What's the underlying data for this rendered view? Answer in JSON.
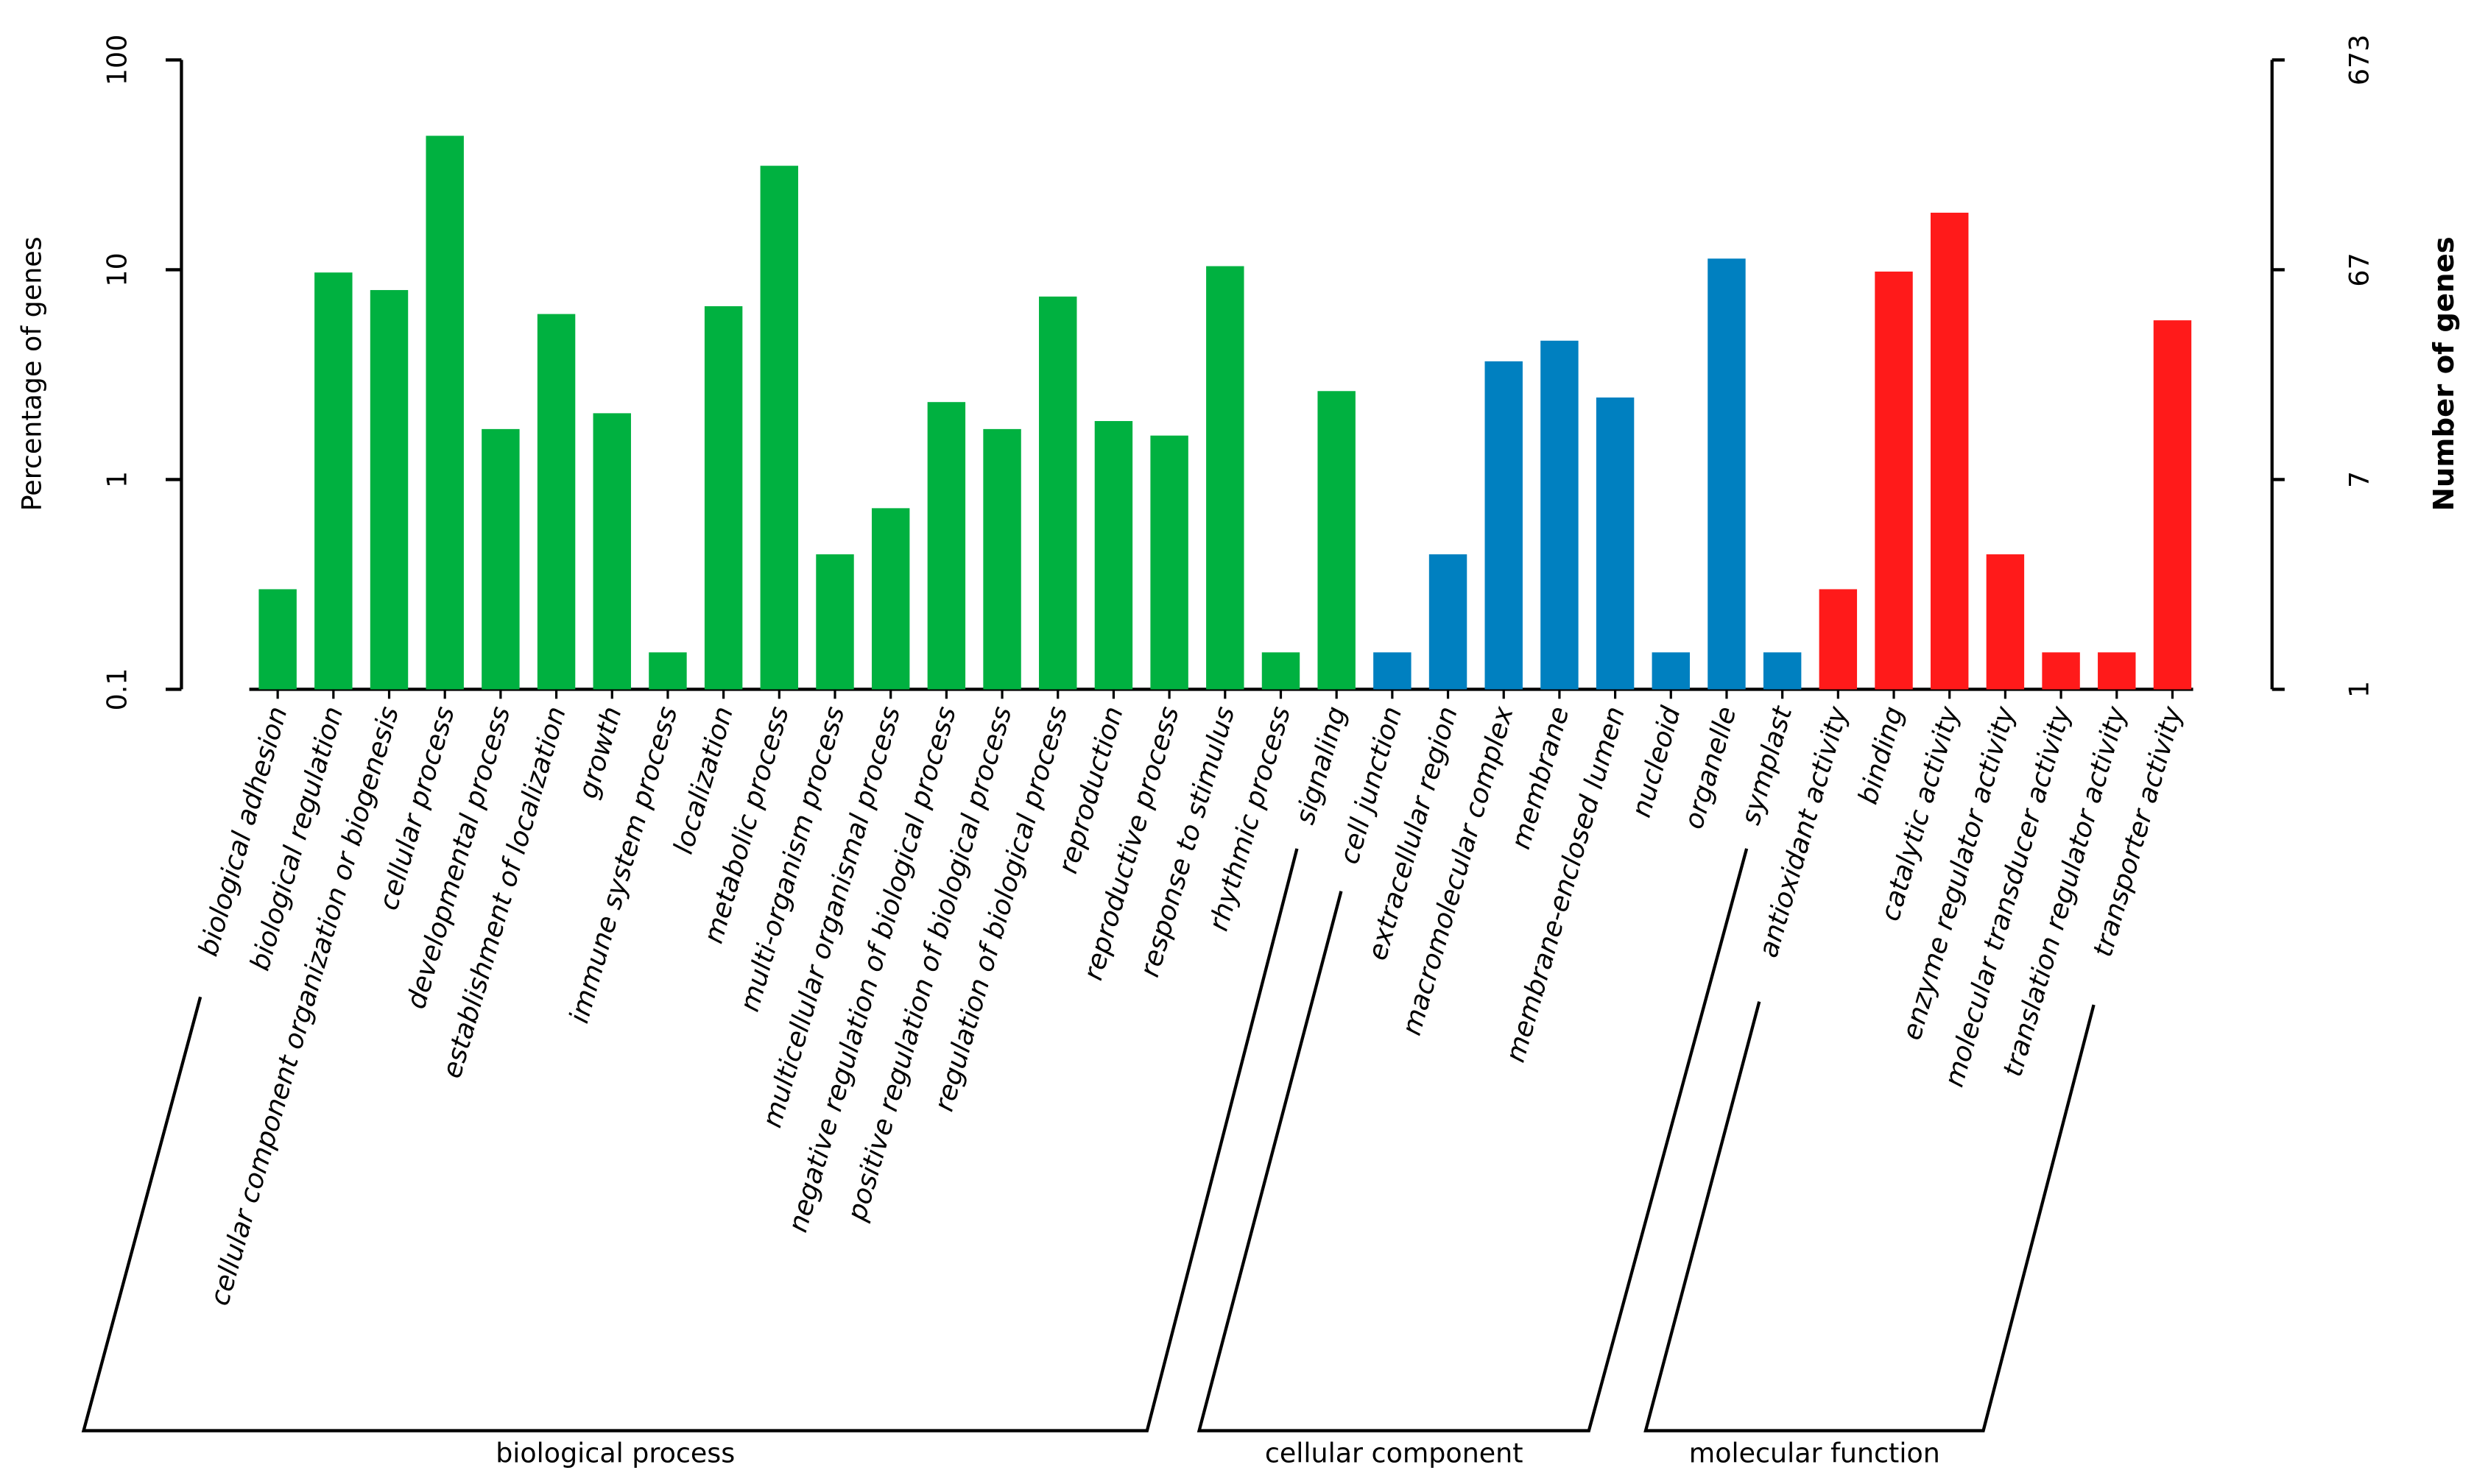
{
  "chart_data": {
    "type": "bar",
    "y_label": "Percentage of genes",
    "y2_label": "Number of genes",
    "log_scale": true,
    "ylim": [
      0.1,
      100
    ],
    "yticks": [
      0.1,
      1,
      10,
      100
    ],
    "y2lim": [
      0.673,
      673
    ],
    "y2ticks": [
      {
        "value": 0.673,
        "label": "1"
      },
      {
        "value": 6.73,
        "label": "7"
      },
      {
        "value": 67.3,
        "label": "67"
      },
      673
    ],
    "groups": [
      {
        "name": "biological process",
        "color": "#00b140",
        "categories": [
          "biological adhesion",
          "biological regulation",
          "cellular component organization or biogenesis",
          "cellular process",
          "developmental process",
          "establishment of localization",
          "growth",
          "immune system process",
          "localization",
          "metabolic process",
          "multi-organism process",
          "multicellular organismal process",
          "negative regulation of biological process",
          "positive regulation of biological process",
          "regulation of biological process",
          "reproduction",
          "reproductive process",
          "response to stimulus",
          "rhythmic process",
          "signaling"
        ],
        "values": [
          0.3,
          9.7,
          8.0,
          43.5,
          1.74,
          6.15,
          2.07,
          0.15,
          6.7,
          31.3,
          0.44,
          0.73,
          2.34,
          1.74,
          7.45,
          1.9,
          1.62,
          10.4,
          0.15,
          2.64
        ]
      },
      {
        "name": "cellular component",
        "color": "#0080c0",
        "categories": [
          "cell junction",
          "extracellular region",
          "macromolecular complex",
          "membrane",
          "membrane-enclosed lumen",
          "nucleoid",
          "organelle",
          "symplast"
        ],
        "values": [
          0.15,
          0.44,
          3.66,
          4.59,
          2.46,
          0.15,
          11.3,
          0.15
        ]
      },
      {
        "name": "molecular function",
        "color": "#ff1a1a",
        "categories": [
          "antioxidant activity",
          "binding",
          "catalytic activity",
          "enzyme regulator activity",
          "molecular transducer activity",
          "translation regulator activity",
          "transporter activity"
        ],
        "values": [
          0.3,
          9.8,
          18.7,
          0.44,
          0.15,
          0.15,
          5.74
        ]
      }
    ]
  }
}
